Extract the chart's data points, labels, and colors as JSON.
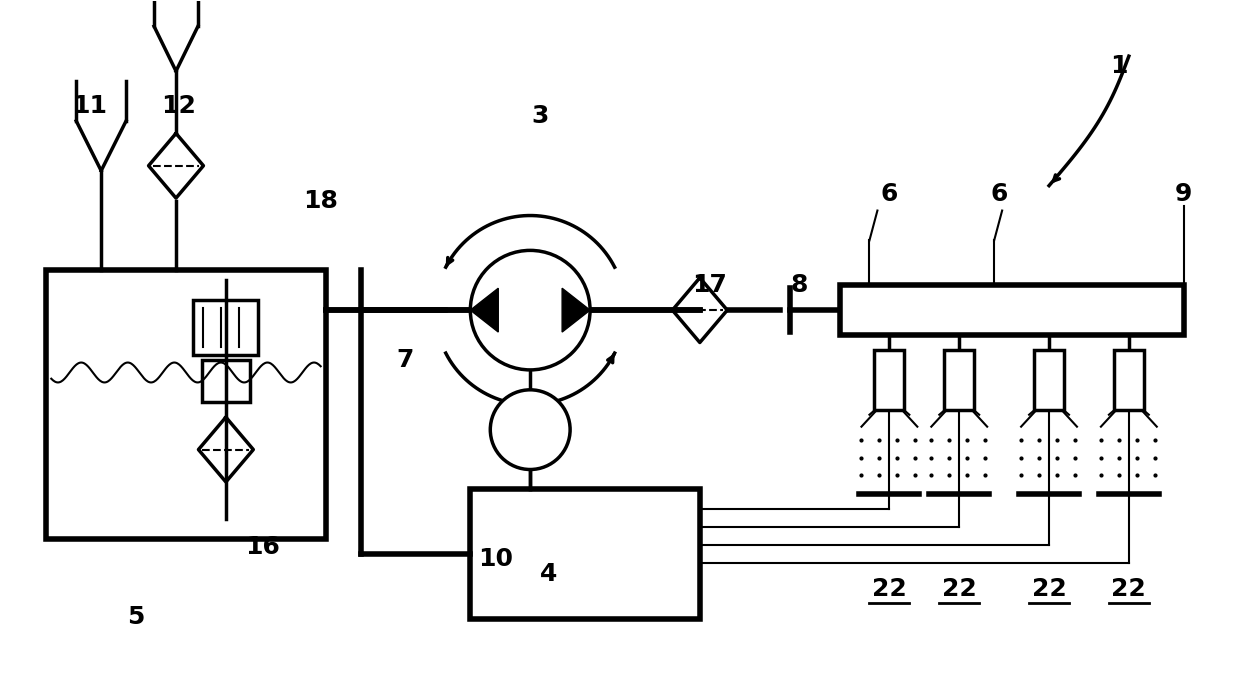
{
  "bg_color": "#ffffff",
  "line_color": "#000000",
  "label_fontsize": 18,
  "label_fontweight": "bold",
  "fig_width": 12.4,
  "fig_height": 6.9
}
